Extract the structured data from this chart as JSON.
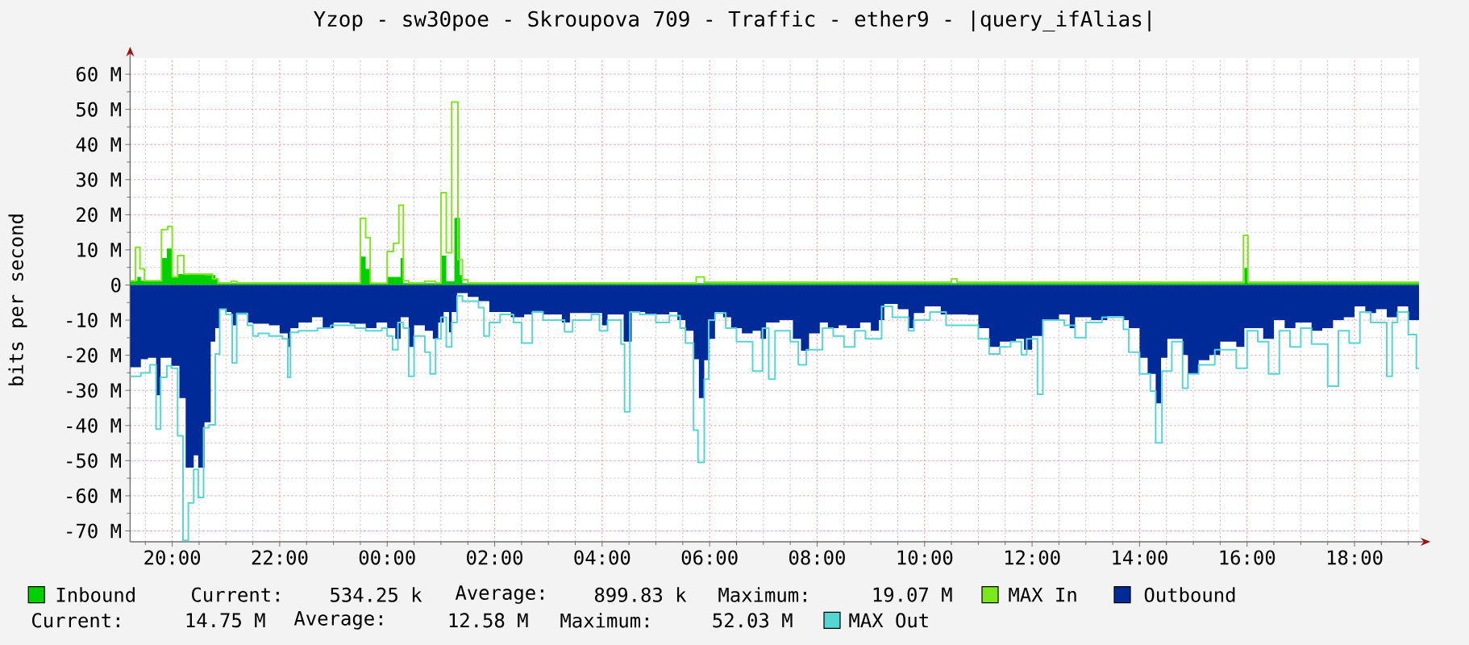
{
  "chart_data": {
    "type": "area",
    "title": "Yzop - sw30poe - Skroupova 709 - Traffic - ether9 - |query_ifAlias|",
    "ylabel": "bits per second",
    "xlim": [
      "2000-01-01T19:13",
      "2000-01-02T19:12"
    ],
    "ylim": [
      -73.1,
      64.6
    ],
    "xticks": [
      {
        "value": "2000-01-01T20:00",
        "label": "20:00"
      },
      {
        "value": "2000-01-01T22:00",
        "label": "22:00"
      },
      {
        "value": "2000-01-02T00:00",
        "label": "00:00"
      },
      {
        "value": "2000-01-02T02:00",
        "label": "02:00"
      },
      {
        "value": "2000-01-02T04:00",
        "label": "04:00"
      },
      {
        "value": "2000-01-02T06:00",
        "label": "06:00"
      },
      {
        "value": "2000-01-02T08:00",
        "label": "08:00"
      },
      {
        "value": "2000-01-02T10:00",
        "label": "10:00"
      },
      {
        "value": "2000-01-02T12:00",
        "label": "12:00"
      },
      {
        "value": "2000-01-02T14:00",
        "label": "14:00"
      },
      {
        "value": "2000-01-02T16:00",
        "label": "16:00"
      },
      {
        "value": "2000-01-02T18:00",
        "label": "18:00"
      }
    ],
    "yticks": [
      {
        "value": -70,
        "label": "-70 M"
      },
      {
        "value": -60,
        "label": "-60 M"
      },
      {
        "value": -50,
        "label": "-50 M"
      },
      {
        "value": -40,
        "label": "-40 M"
      },
      {
        "value": -30,
        "label": "-30 M"
      },
      {
        "value": -20,
        "label": "-20 M"
      },
      {
        "value": -10,
        "label": "-10 M"
      },
      0,
      {
        "value": 10,
        "label": "10 M"
      },
      {
        "value": 20,
        "label": "20 M"
      },
      {
        "value": 30,
        "label": "30 M"
      },
      {
        "value": 40,
        "label": "40 M"
      },
      {
        "value": 50,
        "label": "50 M"
      },
      {
        "value": 60,
        "label": "60 M"
      }
    ],
    "grid": true,
    "legend": "bottom",
    "series": [
      {
        "name": "Inbound",
        "color": "#00CF00",
        "x": [
          "2000-01-01T19:13",
          "2000-01-01T19:21",
          "2000-01-01T19:25",
          "2000-01-01T19:48",
          "2000-01-01T19:54",
          "2000-01-01T20:00",
          "2000-01-01T20:06",
          "2000-01-01T20:36",
          "2000-01-01T20:48",
          "2000-01-01T20:51",
          "2000-01-01T23:30",
          "2000-01-01T23:36",
          "2000-01-01T23:41",
          "2000-01-02T00:00",
          "2000-01-02T00:15",
          "2000-01-02T00:18",
          "2000-01-02T01:01",
          "2000-01-02T01:06",
          "2000-01-02T01:15",
          "2000-01-02T01:21",
          "2000-01-02T01:24",
          "2000-01-02T15:57",
          "2000-01-02T16:01",
          "2000-01-02T19:12"
        ],
        "values": [
          1.2,
          2.3,
          1.2,
          7.7,
          10.4,
          2.3,
          3.1,
          2.8,
          1.8,
          0.5,
          8.1,
          4.6,
          0.5,
          2.3,
          7.7,
          0.5,
          8.4,
          1.1,
          19.1,
          2.8,
          0.5,
          4.9,
          0.5,
          0.5
        ]
      },
      {
        "name": "MAX In",
        "type": "step",
        "color": "#7CE81C",
        "x": [
          "2000-01-01T19:13",
          "2000-01-01T19:19",
          "2000-01-01T19:24",
          "2000-01-01T19:29",
          "2000-01-01T19:48",
          "2000-01-01T19:55",
          "2000-01-01T20:00",
          "2000-01-01T20:06",
          "2000-01-01T20:13",
          "2000-01-01T20:45",
          "2000-01-01T20:51",
          "2000-01-01T21:06",
          "2000-01-01T21:12",
          "2000-01-01T23:30",
          "2000-01-01T23:36",
          "2000-01-01T23:41",
          "2000-01-02T00:00",
          "2000-01-02T00:07",
          "2000-01-02T00:13",
          "2000-01-02T00:18",
          "2000-01-02T00:24",
          "2000-01-02T00:42",
          "2000-01-02T00:54",
          "2000-01-02T01:00",
          "2000-01-02T01:06",
          "2000-01-02T01:12",
          "2000-01-02T01:19",
          "2000-01-02T01:24",
          "2000-01-02T01:30",
          "2000-01-02T05:45",
          "2000-01-02T05:54",
          "2000-01-02T10:30",
          "2000-01-02T10:36",
          "2000-01-02T15:56",
          "2000-01-02T16:01",
          "2000-01-02T19:12"
        ],
        "values": [
          1.2,
          10.7,
          4.6,
          1.2,
          15.8,
          16.7,
          2.3,
          8.4,
          3.1,
          1.8,
          0.6,
          1.1,
          0.6,
          19.0,
          13.5,
          0.5,
          9.5,
          11.9,
          22.7,
          1.2,
          0.6,
          1.1,
          0.6,
          26.3,
          9.2,
          52.1,
          7.2,
          1.5,
          0.6,
          2.3,
          0.8,
          1.8,
          0.8,
          14.1,
          0.8,
          0.8
        ]
      },
      {
        "name": "Outbound",
        "color": "#002A97",
        "x": [
          "2000-01-01T19:13",
          "2000-01-01T19:25",
          "2000-01-01T19:33",
          "2000-01-01T19:42",
          "2000-01-01T19:47",
          "2000-01-01T19:59",
          "2000-01-01T20:08",
          "2000-01-01T20:15",
          "2000-01-01T20:24",
          "2000-01-01T20:29",
          "2000-01-01T20:36",
          "2000-01-01T20:43",
          "2000-01-01T20:48",
          "2000-01-01T20:53",
          "2000-01-01T20:59",
          "2000-01-01T21:06",
          "2000-01-01T21:12",
          "2000-01-01T21:24",
          "2000-01-01T21:30",
          "2000-01-01T21:48",
          "2000-01-01T22:00",
          "2000-01-01T22:09",
          "2000-01-01T22:12",
          "2000-01-01T22:21",
          "2000-01-01T22:36",
          "2000-01-01T22:48",
          "2000-01-01T23:00",
          "2000-01-01T23:18",
          "2000-01-01T23:36",
          "2000-01-01T23:48",
          "2000-01-02T00:00",
          "2000-01-02T00:09",
          "2000-01-02T00:15",
          "2000-01-02T00:24",
          "2000-01-02T00:30",
          "2000-01-02T00:42",
          "2000-01-02T00:51",
          "2000-01-02T00:57",
          "2000-01-02T01:03",
          "2000-01-02T01:09",
          "2000-01-02T01:12",
          "2000-01-02T01:18",
          "2000-01-02T01:30",
          "2000-01-02T01:42",
          "2000-01-02T01:54",
          "2000-01-02T02:18",
          "2000-01-02T02:33",
          "2000-01-02T02:42",
          "2000-01-02T02:54",
          "2000-01-02T03:15",
          "2000-01-02T03:24",
          "2000-01-02T04:00",
          "2000-01-02T04:06",
          "2000-01-02T04:24",
          "2000-01-02T04:33",
          "2000-01-02T04:48",
          "2000-01-02T05:15",
          "2000-01-02T05:24",
          "2000-01-02T05:33",
          "2000-01-02T05:42",
          "2000-01-02T05:48",
          "2000-01-02T05:54",
          "2000-01-02T06:00",
          "2000-01-02T06:06",
          "2000-01-02T06:15",
          "2000-01-02T06:24",
          "2000-01-02T06:36",
          "2000-01-02T06:48",
          "2000-01-02T06:57",
          "2000-01-02T07:03",
          "2000-01-02T07:18",
          "2000-01-02T07:33",
          "2000-01-02T07:42",
          "2000-01-02T07:51",
          "2000-01-02T08:03",
          "2000-01-02T08:12",
          "2000-01-02T08:24",
          "2000-01-02T08:33",
          "2000-01-02T08:48",
          "2000-01-02T09:00",
          "2000-01-02T09:09",
          "2000-01-02T09:15",
          "2000-01-02T09:30",
          "2000-01-02T09:42",
          "2000-01-02T09:48",
          "2000-01-02T10:00",
          "2000-01-02T10:18",
          "2000-01-02T10:48",
          "2000-01-02T11:00",
          "2000-01-02T11:12",
          "2000-01-02T11:24",
          "2000-01-02T11:42",
          "2000-01-02T11:51",
          "2000-01-02T12:00",
          "2000-01-02T12:12",
          "2000-01-02T12:30",
          "2000-01-02T12:42",
          "2000-01-02T12:48",
          "2000-01-02T13:06",
          "2000-01-02T13:24",
          "2000-01-02T13:42",
          "2000-01-02T13:48",
          "2000-01-02T14:00",
          "2000-01-02T14:09",
          "2000-01-02T14:18",
          "2000-01-02T14:24",
          "2000-01-02T14:31",
          "2000-01-02T14:48",
          "2000-01-02T14:54",
          "2000-01-02T15:06",
          "2000-01-02T15:18",
          "2000-01-02T15:30",
          "2000-01-02T15:48",
          "2000-01-02T15:57",
          "2000-01-02T16:18",
          "2000-01-02T16:30",
          "2000-01-02T16:42",
          "2000-01-02T16:54",
          "2000-01-02T17:12",
          "2000-01-02T17:24",
          "2000-01-02T17:36",
          "2000-01-02T17:48",
          "2000-01-02T18:00",
          "2000-01-02T18:12",
          "2000-01-02T18:24",
          "2000-01-02T18:36",
          "2000-01-02T18:48",
          "2000-01-02T19:00",
          "2000-01-02T19:12"
        ],
        "values": [
          -23.4,
          -21.1,
          -20.7,
          -31.4,
          -20.7,
          -23.0,
          -32.2,
          -52.0,
          -48.5,
          -52.0,
          -39.1,
          -16.1,
          -12.3,
          -6.9,
          -7.7,
          -11.5,
          -8.4,
          -10.7,
          -11.0,
          -11.5,
          -13.8,
          -17.6,
          -12.3,
          -10.7,
          -9.2,
          -12.3,
          -10.7,
          -11.0,
          -12.3,
          -10.7,
          -12.3,
          -15.3,
          -9.2,
          -17.6,
          -11.5,
          -13.0,
          -15.3,
          -10.7,
          -7.7,
          -13.5,
          -7.7,
          -2.3,
          -3.4,
          -4.6,
          -7.7,
          -9.2,
          -8.4,
          -7.4,
          -8.4,
          -10.7,
          -8.0,
          -11.5,
          -8.4,
          -16.1,
          -7.7,
          -8.4,
          -7.7,
          -10.0,
          -13.0,
          -21.1,
          -32.2,
          -21.4,
          -15.3,
          -7.7,
          -9.2,
          -12.3,
          -13.8,
          -13.0,
          -15.3,
          -10.7,
          -10.0,
          -15.3,
          -18.7,
          -13.8,
          -10.7,
          -12.3,
          -11.5,
          -12.3,
          -10.7,
          -13.0,
          -10.0,
          -5.4,
          -6.9,
          -12.3,
          -8.0,
          -6.1,
          -8.4,
          -8.5,
          -12.3,
          -17.6,
          -16.1,
          -15.3,
          -18.4,
          -14.5,
          -10.0,
          -8.4,
          -12.3,
          -9.2,
          -10.0,
          -8.9,
          -10.0,
          -12.3,
          -20.7,
          -25.3,
          -33.7,
          -20.7,
          -15.3,
          -19.9,
          -25.3,
          -21.4,
          -19.9,
          -16.1,
          -17.6,
          -12.3,
          -15.3,
          -10.0,
          -12.3,
          -10.7,
          -13.0,
          -12.3,
          -10.0,
          -9.2,
          -6.1,
          -8.0,
          -6.9,
          -9.2,
          -6.1,
          -10.0,
          -10.0
        ]
      },
      {
        "name": "MAX Out",
        "type": "step",
        "color": "#55D6D3",
        "x": [
          "2000-01-01T19:13",
          "2000-01-01T19:25",
          "2000-01-01T19:35",
          "2000-01-01T19:42",
          "2000-01-01T19:47",
          "2000-01-01T19:54",
          "2000-01-01T19:59",
          "2000-01-01T20:06",
          "2000-01-01T20:12",
          "2000-01-01T20:18",
          "2000-01-01T20:24",
          "2000-01-01T20:29",
          "2000-01-01T20:35",
          "2000-01-01T20:41",
          "2000-01-01T20:48",
          "2000-01-01T20:53",
          "2000-01-01T21:00",
          "2000-01-01T21:07",
          "2000-01-01T21:12",
          "2000-01-01T21:24",
          "2000-01-01T21:30",
          "2000-01-01T21:36",
          "2000-01-01T21:48",
          "2000-01-01T22:03",
          "2000-01-01T22:09",
          "2000-01-01T22:12",
          "2000-01-01T22:21",
          "2000-01-01T22:42",
          "2000-01-01T22:57",
          "2000-01-01T23:24",
          "2000-01-01T23:36",
          "2000-01-01T23:54",
          "2000-01-02T00:00",
          "2000-01-02T00:06",
          "2000-01-02T00:12",
          "2000-01-02T00:18",
          "2000-01-02T00:24",
          "2000-01-02T00:30",
          "2000-01-02T00:42",
          "2000-01-02T00:48",
          "2000-01-02T00:54",
          "2000-01-02T01:00",
          "2000-01-02T01:06",
          "2000-01-02T01:12",
          "2000-01-02T01:18",
          "2000-01-02T01:24",
          "2000-01-02T01:42",
          "2000-01-02T01:48",
          "2000-01-02T01:54",
          "2000-01-02T02:06",
          "2000-01-02T02:21",
          "2000-01-02T02:30",
          "2000-01-02T02:42",
          "2000-01-02T02:54",
          "2000-01-02T03:18",
          "2000-01-02T03:27",
          "2000-01-02T03:48",
          "2000-01-02T03:57",
          "2000-01-02T04:06",
          "2000-01-02T04:21",
          "2000-01-02T04:25",
          "2000-01-02T04:31",
          "2000-01-02T04:42",
          "2000-01-02T05:00",
          "2000-01-02T05:15",
          "2000-01-02T05:27",
          "2000-01-02T05:33",
          "2000-01-02T05:42",
          "2000-01-02T05:47",
          "2000-01-02T05:54",
          "2000-01-02T05:59",
          "2000-01-02T06:06",
          "2000-01-02T06:18",
          "2000-01-02T06:30",
          "2000-01-02T06:48",
          "2000-01-02T06:59",
          "2000-01-02T07:06",
          "2000-01-02T07:13",
          "2000-01-02T07:30",
          "2000-01-02T07:39",
          "2000-01-02T07:48",
          "2000-01-02T08:06",
          "2000-01-02T08:18",
          "2000-01-02T08:30",
          "2000-01-02T08:42",
          "2000-01-02T08:54",
          "2000-01-02T09:12",
          "2000-01-02T09:24",
          "2000-01-02T09:42",
          "2000-01-02T09:48",
          "2000-01-02T10:06",
          "2000-01-02T10:24",
          "2000-01-02T10:48",
          "2000-01-02T11:00",
          "2000-01-02T11:12",
          "2000-01-02T11:24",
          "2000-01-02T11:36",
          "2000-01-02T11:48",
          "2000-01-02T11:54",
          "2000-01-02T12:06",
          "2000-01-02T12:12",
          "2000-01-02T12:36",
          "2000-01-02T12:48",
          "2000-01-02T13:00",
          "2000-01-02T13:18",
          "2000-01-02T13:42",
          "2000-01-02T13:48",
          "2000-01-02T14:00",
          "2000-01-02T14:12",
          "2000-01-02T14:18",
          "2000-01-02T14:25",
          "2000-01-02T14:36",
          "2000-01-02T14:48",
          "2000-01-02T14:54",
          "2000-01-02T15:06",
          "2000-01-02T15:24",
          "2000-01-02T15:48",
          "2000-01-02T16:00",
          "2000-01-02T16:12",
          "2000-01-02T16:24",
          "2000-01-02T16:36",
          "2000-01-02T16:48",
          "2000-01-02T17:00",
          "2000-01-02T17:12",
          "2000-01-02T17:30",
          "2000-01-02T17:42",
          "2000-01-02T17:54",
          "2000-01-02T18:06",
          "2000-01-02T18:18",
          "2000-01-02T18:36",
          "2000-01-02T18:42",
          "2000-01-02T18:48",
          "2000-01-02T19:00",
          "2000-01-02T19:09",
          "2000-01-02T19:12"
        ],
        "values": [
          -26.0,
          -25.0,
          -22.7,
          -41.0,
          -26.3,
          -23.0,
          -23.7,
          -42.9,
          -72.7,
          -62.0,
          -52.5,
          -60.5,
          -40.6,
          -39.8,
          -19.6,
          -6.9,
          -8.4,
          -22.2,
          -8.1,
          -11.5,
          -14.5,
          -13.8,
          -14.5,
          -15.3,
          -26.3,
          -13.5,
          -13.0,
          -12.3,
          -11.5,
          -12.3,
          -13.0,
          -12.3,
          -14.5,
          -18.4,
          -10.7,
          -12.3,
          -26.0,
          -14.5,
          -19.1,
          -25.3,
          -15.3,
          -9.2,
          -17.6,
          -10.7,
          -3.1,
          -4.6,
          -6.4,
          -14.5,
          -10.7,
          -8.4,
          -10.7,
          -16.5,
          -7.7,
          -10.0,
          -13.3,
          -10.0,
          -8.4,
          -13.0,
          -10.0,
          -16.8,
          -36.1,
          -7.7,
          -8.4,
          -10.7,
          -8.7,
          -12.3,
          -16.5,
          -41.3,
          -50.5,
          -26.8,
          -10.0,
          -8.0,
          -12.3,
          -16.1,
          -24.5,
          -12.3,
          -26.8,
          -13.0,
          -16.1,
          -22.7,
          -18.4,
          -12.3,
          -14.5,
          -17.6,
          -13.0,
          -15.3,
          -6.1,
          -9.2,
          -13.0,
          -10.0,
          -7.7,
          -11.5,
          -11.5,
          -15.3,
          -19.6,
          -17.6,
          -16.1,
          -19.9,
          -15.3,
          -31.1,
          -10.0,
          -11.5,
          -15.0,
          -10.7,
          -9.2,
          -12.6,
          -19.1,
          -25.3,
          -30.2,
          -44.9,
          -24.5,
          -16.1,
          -29.4,
          -25.3,
          -22.7,
          -18.4,
          -23.7,
          -13.0,
          -16.1,
          -25.3,
          -13.0,
          -17.6,
          -12.3,
          -16.8,
          -28.8,
          -13.0,
          -16.5,
          -7.7,
          -10.7,
          -26.0,
          -10.7,
          -7.7,
          -14.1,
          -23.7,
          -23.7
        ]
      }
    ],
    "annotations": [
      "Current:",
      "534.25 k",
      "Average:",
      "899.83 k",
      "Maximum:",
      "19.07 M",
      "Current:",
      "14.75 M",
      "Average:",
      "12.58 M",
      "Maximum:",
      "52.03 M"
    ]
  }
}
